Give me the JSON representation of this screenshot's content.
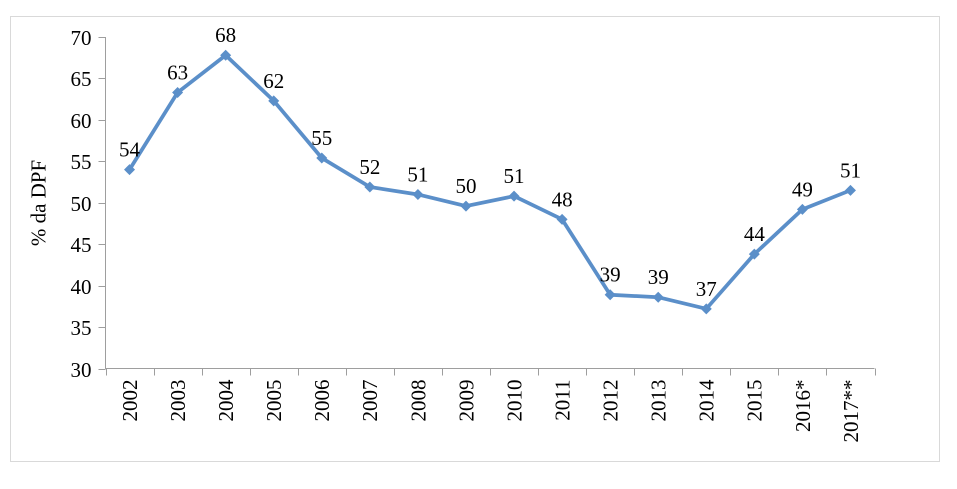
{
  "chart_data": {
    "type": "line",
    "title": "",
    "xlabel": "",
    "ylabel": "% da DPF",
    "categories": [
      "2002",
      "2003",
      "2004",
      "2005",
      "2006",
      "2007",
      "2008",
      "2009",
      "2010",
      "2011",
      "2012",
      "2013",
      "2014",
      "2015",
      "2016*",
      "2017**"
    ],
    "values": [
      54,
      63,
      68,
      62,
      55,
      52,
      51,
      50,
      51,
      48,
      39,
      39,
      37,
      44,
      49,
      51
    ],
    "values_precise": [
      54.0,
      63.3,
      67.8,
      62.3,
      55.4,
      51.9,
      51.0,
      49.6,
      50.8,
      48.0,
      38.9,
      38.6,
      37.2,
      43.8,
      49.2,
      51.5
    ],
    "ylim": [
      30,
      70
    ],
    "ytick_step": 5,
    "grid": false,
    "legend_position": "none",
    "data_labels_shown": true,
    "marker": "diamond",
    "colors": {
      "line": "#5B8FC9",
      "marker": "#5B8FC9",
      "axis": "#9E9E9E",
      "frame": "#D9D9D9",
      "text": "#000000"
    }
  }
}
